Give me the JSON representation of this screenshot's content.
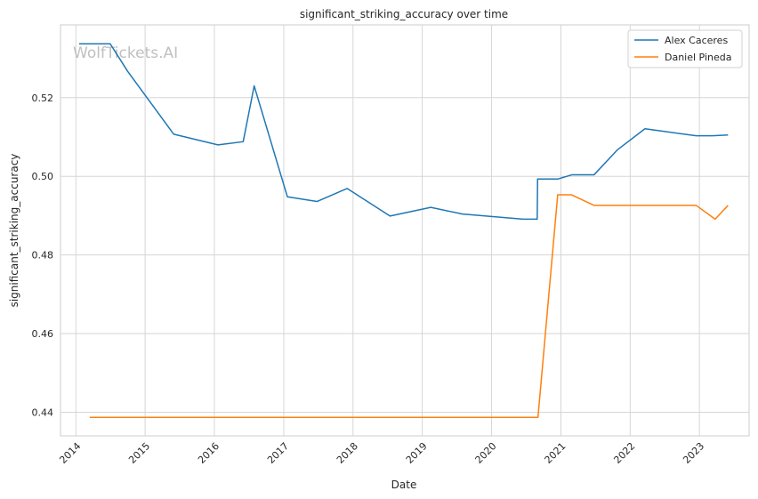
{
  "chart_data": {
    "type": "line",
    "title": "significant_striking_accuracy over time",
    "xlabel": "Date",
    "ylabel": "significant_striking_accuracy",
    "watermark": "WolfTickets.AI",
    "x_ticks": [
      "2014",
      "2015",
      "2016",
      "2017",
      "2018",
      "2019",
      "2020",
      "2021",
      "2022",
      "2023"
    ],
    "y_ticks": [
      "0.44",
      "0.46",
      "0.48",
      "0.50",
      "0.52"
    ],
    "xlim": [
      "2013-10-12",
      "2023-09-20"
    ],
    "ylim": [
      0.434,
      0.5385
    ],
    "grid": true,
    "legend_position": "top-right",
    "series": [
      {
        "name": "Alex Caceres",
        "color": "#1f77b4",
        "points": [
          [
            "2014-01-18",
            0.5337
          ],
          [
            "2014-07-01",
            0.5337
          ],
          [
            "2014-10-01",
            0.5267
          ],
          [
            "2015-06-01",
            0.5107
          ],
          [
            "2016-01-20",
            0.508
          ],
          [
            "2016-06-01",
            0.5088
          ],
          [
            "2016-07-29",
            0.523
          ],
          [
            "2017-01-20",
            0.4948
          ],
          [
            "2017-06-25",
            0.4936
          ],
          [
            "2017-12-01",
            0.4969
          ],
          [
            "2018-07-15",
            0.4899
          ],
          [
            "2019-02-15",
            0.4921
          ],
          [
            "2019-08-01",
            0.4904
          ],
          [
            "2020-06-15",
            0.4891
          ],
          [
            "2020-08-29",
            0.4891
          ],
          [
            "2020-08-31",
            0.4993
          ],
          [
            "2020-12-15",
            0.4993
          ],
          [
            "2021-03-01",
            0.5004
          ],
          [
            "2021-06-25",
            0.5004
          ],
          [
            "2021-10-25",
            0.5067
          ],
          [
            "2022-03-20",
            0.5121
          ],
          [
            "2022-12-15",
            0.5103
          ],
          [
            "2023-03-10",
            0.5103
          ],
          [
            "2023-06-01",
            0.5105
          ]
        ]
      },
      {
        "name": "Daniel Pineda",
        "color": "#ff7f0e",
        "points": [
          [
            "2014-03-15",
            0.4387
          ],
          [
            "2020-09-02",
            0.4387
          ],
          [
            "2020-12-15",
            0.4953
          ],
          [
            "2021-02-25",
            0.4953
          ],
          [
            "2021-06-25",
            0.4926
          ],
          [
            "2022-12-15",
            0.4926
          ],
          [
            "2023-03-25",
            0.4891
          ],
          [
            "2023-06-01",
            0.4926
          ]
        ]
      }
    ]
  }
}
